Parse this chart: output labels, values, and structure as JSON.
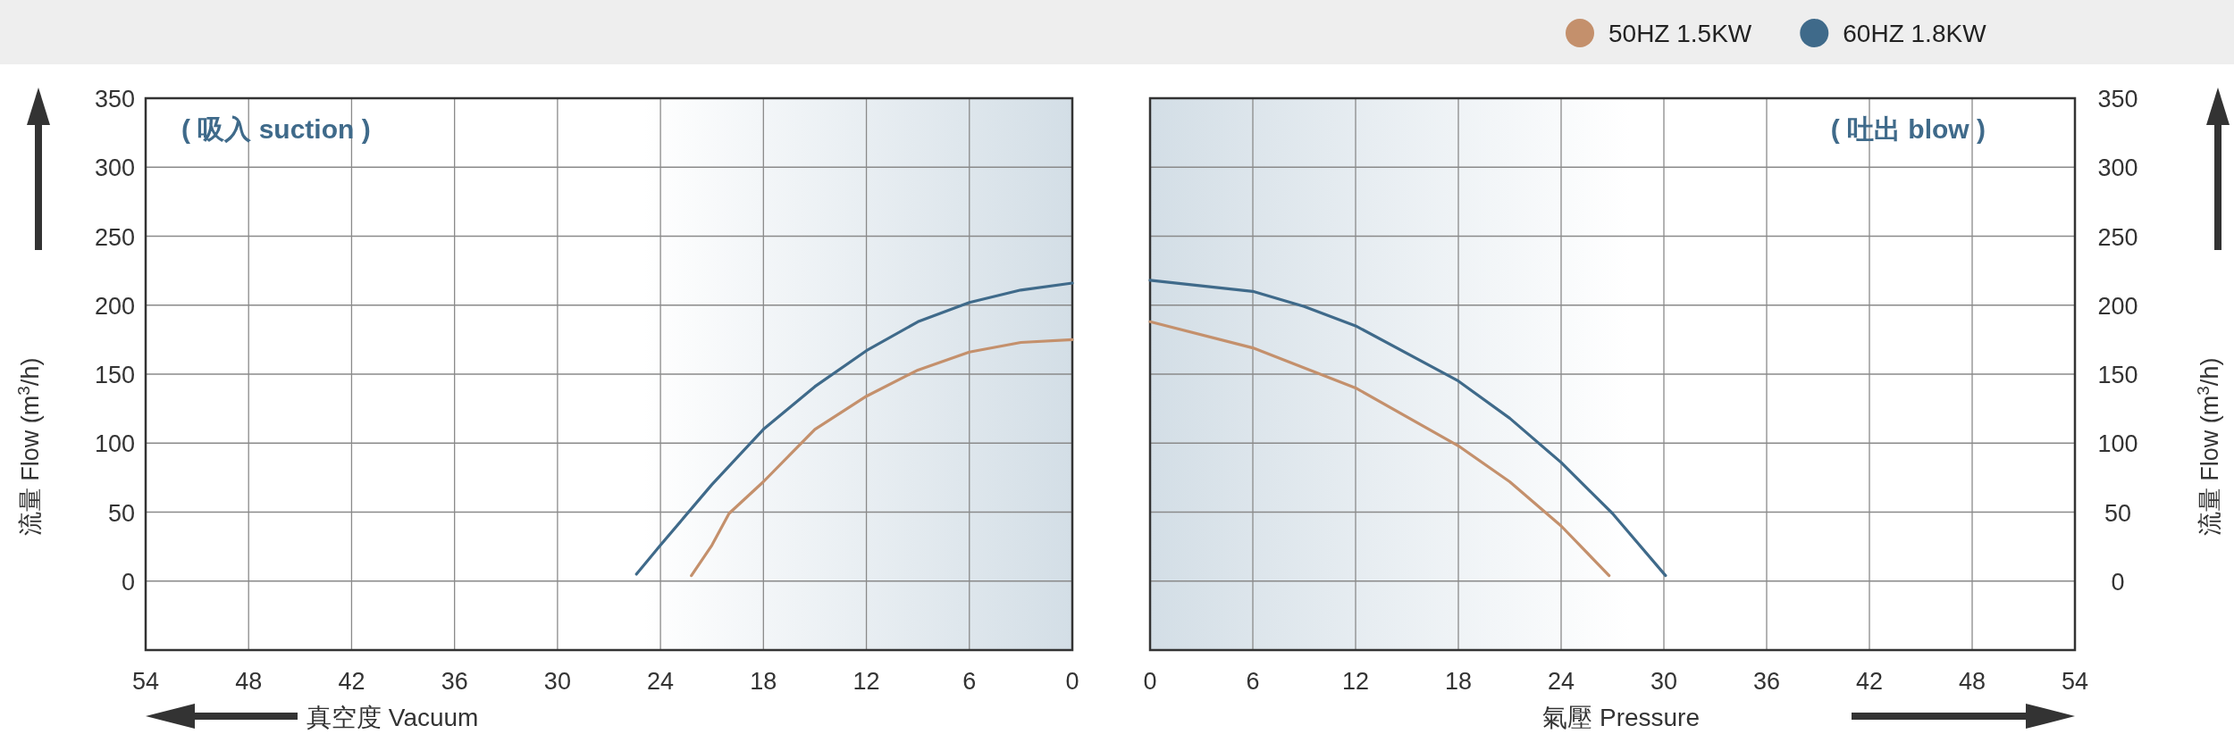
{
  "chart_data": [
    {
      "type": "line",
      "xlabel": "真空度  Vacuum",
      "ylabel": "流量 Flow (m$^{3}$/h)",
      "xlim": [
        54,
        0
      ],
      "xticks": [
        54,
        48,
        42,
        36,
        30,
        24,
        18,
        12,
        6,
        0
      ],
      "ylim": [
        -50,
        350
      ],
      "yticks": [
        0,
        50,
        100,
        150,
        200,
        250,
        300,
        350
      ],
      "grid": true,
      "legend": false,
      "marker": "none",
      "line_style": "solid",
      "annotations": [
        "( 吸入 suction )"
      ],
      "bands": [
        {
          "axis": "x",
          "from": 25,
          "to": 0,
          "color": "#d3dee6"
        }
      ],
      "series": [
        {
          "color": "#c4906c",
          "x": [
            22.2,
            21,
            20,
            18,
            15,
            12,
            9,
            6,
            3,
            0
          ],
          "values": [
            4,
            26,
            49,
            72,
            110,
            134,
            153,
            166,
            173,
            175
          ]
        },
        {
          "color": "#3f6a8a",
          "x": [
            25.4,
            24,
            21,
            18,
            15,
            12,
            9,
            6,
            3,
            0
          ],
          "values": [
            5,
            26,
            70,
            110,
            141,
            167,
            188,
            202,
            211,
            216
          ]
        }
      ]
    },
    {
      "type": "line",
      "xlabel": "氣壓  Pressure",
      "ylabel": "流量 Flow (m$^{3}$/h)",
      "xlim": [
        0,
        54
      ],
      "xticks": [
        0,
        6,
        12,
        18,
        24,
        30,
        36,
        42,
        48,
        54
      ],
      "ylim": [
        -50,
        350
      ],
      "yticks": [
        0,
        50,
        100,
        150,
        200,
        250,
        300,
        350
      ],
      "grid": true,
      "legend": "top right",
      "marker": "none",
      "line_style": "solid",
      "annotations": [
        "( 吐出 blow )"
      ],
      "bands": [
        {
          "axis": "x",
          "from": 28,
          "to": 0,
          "color": "#d3dee6"
        }
      ],
      "series": [
        {
          "name": "50HZ  1.5KW",
          "color": "#c4906c",
          "x": [
            0,
            6,
            12,
            18,
            21,
            24,
            26.8
          ],
          "values": [
            188,
            169,
            140,
            98,
            72,
            40,
            4
          ]
        },
        {
          "name": "60HZ 1.8KW",
          "color": "#3f6a8a",
          "x": [
            0,
            6,
            9,
            12,
            18,
            21,
            24,
            27,
            30.1
          ],
          "values": [
            218,
            210,
            199,
            185,
            145,
            118,
            86,
            49,
            4
          ]
        }
      ]
    }
  ]
}
